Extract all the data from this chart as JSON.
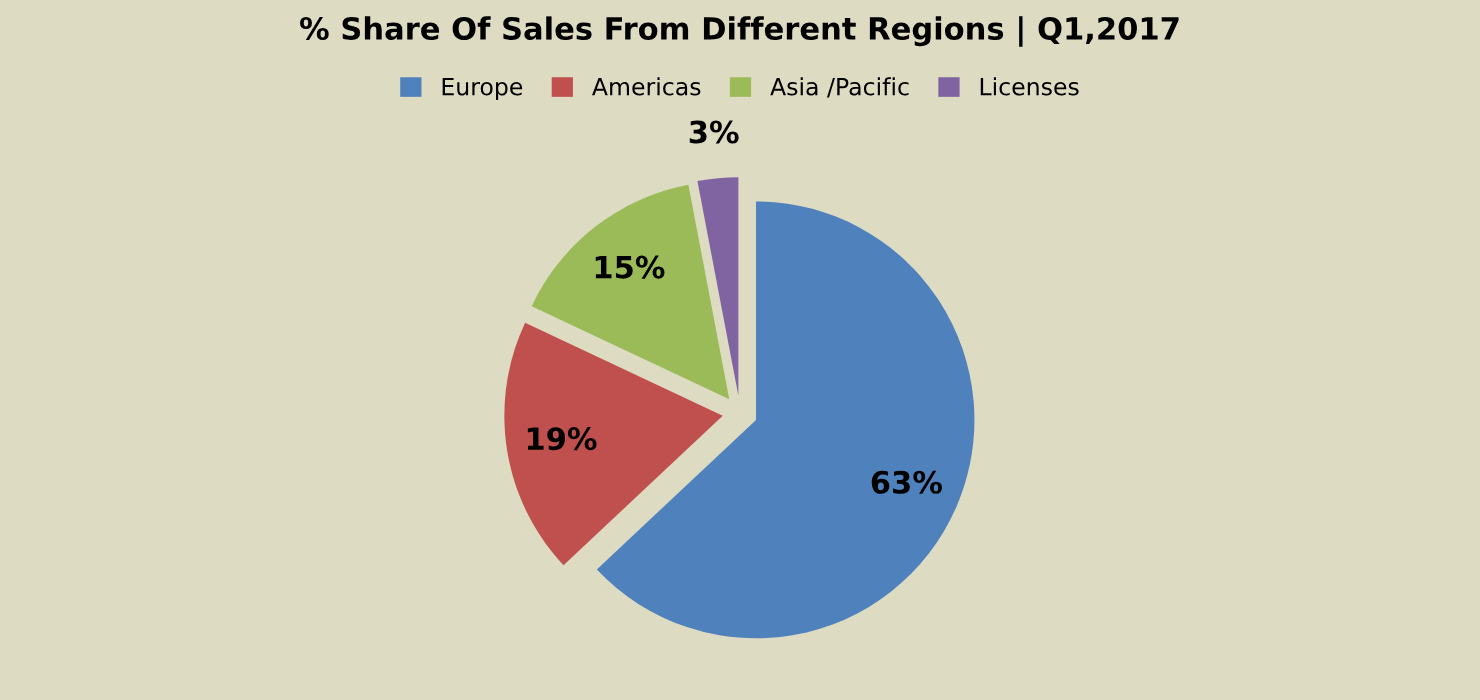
{
  "chart_data": {
    "type": "pie",
    "title": "% Share Of Sales From Different Regions | Q1,2017",
    "categories": [
      "Europe",
      "Americas",
      "Asia /Pacific",
      "Licenses"
    ],
    "values": [
      63,
      19,
      15,
      3
    ],
    "colors": [
      "#4f81bd",
      "#c0504d",
      "#9bbb59",
      "#8064a2"
    ],
    "value_labels": [
      "63%",
      "19%",
      "15%",
      "3%"
    ],
    "legend": "top"
  }
}
